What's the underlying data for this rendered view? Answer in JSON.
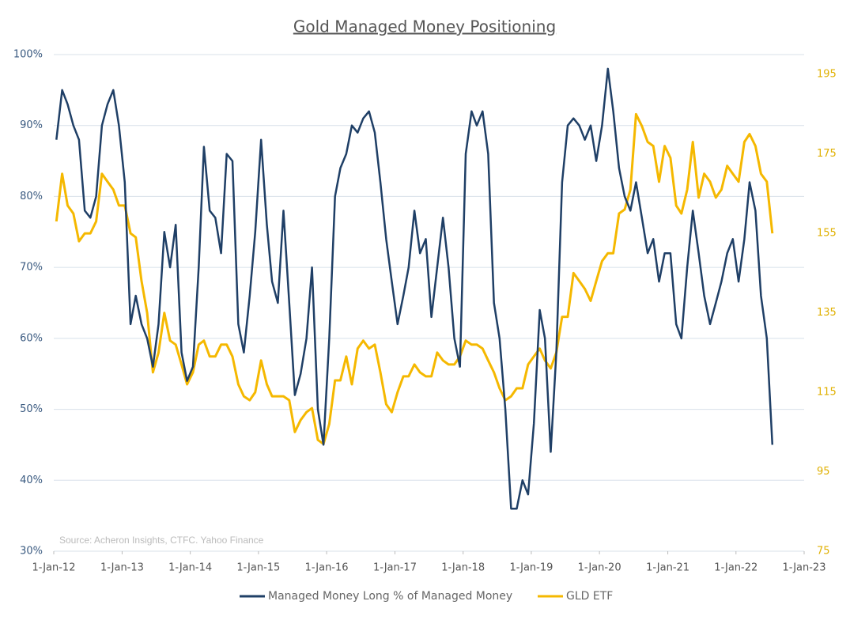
{
  "chart_data": {
    "type": "line",
    "title": "Gold Managed Money Positioning",
    "annotation": "Source: Acheron Insights, CTFC. Yahoo Finance",
    "x": [
      "2012-01-15",
      "2012-02-15",
      "2012-03-15",
      "2012-04-15",
      "2012-05-15",
      "2012-06-15",
      "2012-07-15",
      "2012-08-15",
      "2012-09-15",
      "2012-10-15",
      "2012-11-15",
      "2012-12-15",
      "2013-01-15",
      "2013-02-15",
      "2013-03-15",
      "2013-04-15",
      "2013-05-15",
      "2013-06-15",
      "2013-07-15",
      "2013-08-15",
      "2013-09-15",
      "2013-10-15",
      "2013-11-15",
      "2013-12-15",
      "2014-01-15",
      "2014-02-15",
      "2014-03-15",
      "2014-04-15",
      "2014-05-15",
      "2014-06-15",
      "2014-07-15",
      "2014-08-15",
      "2014-09-15",
      "2014-10-15",
      "2014-11-15",
      "2014-12-15",
      "2015-01-15",
      "2015-02-15",
      "2015-03-15",
      "2015-04-15",
      "2015-05-15",
      "2015-06-15",
      "2015-07-15",
      "2015-08-15",
      "2015-09-15",
      "2015-10-15",
      "2015-11-15",
      "2015-12-15",
      "2016-01-15",
      "2016-02-15",
      "2016-03-15",
      "2016-04-15",
      "2016-05-15",
      "2016-06-15",
      "2016-07-15",
      "2016-08-15",
      "2016-09-15",
      "2016-10-15",
      "2016-11-15",
      "2016-12-15",
      "2017-01-15",
      "2017-02-15",
      "2017-03-15",
      "2017-04-15",
      "2017-05-15",
      "2017-06-15",
      "2017-07-15",
      "2017-08-15",
      "2017-09-15",
      "2017-10-15",
      "2017-11-15",
      "2017-12-15",
      "2018-01-15",
      "2018-02-15",
      "2018-03-15",
      "2018-04-15",
      "2018-05-15",
      "2018-06-15",
      "2018-07-15",
      "2018-08-15",
      "2018-09-15",
      "2018-10-15",
      "2018-11-15",
      "2018-12-15",
      "2019-01-15",
      "2019-02-15",
      "2019-03-15",
      "2019-04-15",
      "2019-05-15",
      "2019-06-15",
      "2019-07-15",
      "2019-08-15",
      "2019-09-15",
      "2019-10-15",
      "2019-11-15",
      "2019-12-15",
      "2020-01-15",
      "2020-02-15",
      "2020-03-15",
      "2020-04-15",
      "2020-05-15",
      "2020-06-15",
      "2020-07-15",
      "2020-08-15",
      "2020-09-15",
      "2020-10-15",
      "2020-11-15",
      "2020-12-15",
      "2021-01-15",
      "2021-02-15",
      "2021-03-15",
      "2021-04-15",
      "2021-05-15",
      "2021-06-15",
      "2021-07-15",
      "2021-08-15",
      "2021-09-15",
      "2021-10-15",
      "2021-11-15",
      "2021-12-15",
      "2022-01-15",
      "2022-02-15",
      "2022-03-15",
      "2022-04-15",
      "2022-05-15",
      "2022-06-15",
      "2022-07-15"
    ],
    "series": [
      {
        "name": "Managed Money Long % of Managed Money",
        "color": "#1f3f66",
        "axis": "y",
        "values": [
          88,
          95,
          93,
          90,
          88,
          78,
          77,
          80,
          90,
          93,
          95,
          90,
          82,
          62,
          66,
          62,
          60,
          56,
          62,
          75,
          70,
          76,
          58,
          54,
          56,
          70,
          87,
          78,
          77,
          72,
          86,
          85,
          62,
          58,
          66,
          75,
          88,
          76,
          68,
          65,
          78,
          65,
          52,
          55,
          60,
          70,
          50,
          45,
          60,
          80,
          84,
          86,
          90,
          89,
          91,
          92,
          89,
          82,
          74,
          68,
          62,
          66,
          70,
          78,
          72,
          74,
          63,
          70,
          77,
          70,
          60,
          56,
          86,
          92,
          90,
          92,
          86,
          65,
          60,
          50,
          36,
          36,
          40,
          38,
          48,
          64,
          60,
          44,
          58,
          82,
          90,
          91,
          90,
          88,
          90,
          85,
          90,
          98,
          92,
          84,
          80,
          78,
          82,
          77,
          72,
          74,
          68,
          72,
          72,
          62,
          60,
          70,
          78,
          72,
          66,
          62,
          65,
          68,
          72,
          74,
          68,
          74,
          82,
          78,
          66,
          60,
          45
        ]
      },
      {
        "name": "GLD ETF",
        "color": "#f5b800",
        "axis": "y2",
        "values": [
          158,
          170,
          162,
          160,
          153,
          155,
          155,
          158,
          170,
          168,
          166,
          162,
          162,
          155,
          154,
          143,
          135,
          120,
          125,
          135,
          128,
          127,
          122,
          117,
          120,
          127,
          128,
          124,
          124,
          127,
          127,
          124,
          117,
          114,
          113,
          115,
          123,
          117,
          114,
          114,
          114,
          113,
          105,
          108,
          110,
          111,
          103,
          102,
          107,
          118,
          118,
          124,
          117,
          126,
          128,
          126,
          127,
          120,
          112,
          110,
          115,
          119,
          119,
          122,
          120,
          119,
          119,
          125,
          123,
          122,
          122,
          124,
          128,
          127,
          127,
          126,
          123,
          120,
          116,
          113,
          114,
          116,
          116,
          122,
          124,
          126,
          123,
          121,
          125,
          134,
          134,
          145,
          143,
          141,
          138,
          143,
          148,
          150,
          150,
          160,
          161,
          166,
          185,
          182,
          178,
          177,
          168,
          177,
          174,
          162,
          160,
          166,
          178,
          164,
          170,
          168,
          164,
          166,
          172,
          170,
          168,
          178,
          180,
          177,
          170,
          168,
          155
        ]
      }
    ],
    "xlim": [
      "2012-01-01",
      "2023-01-01"
    ],
    "xticks": [
      {
        "value": "2012-01-01",
        "label": "1-Jan-12"
      },
      {
        "value": "2013-01-01",
        "label": "1-Jan-13"
      },
      {
        "value": "2014-01-01",
        "label": "1-Jan-14"
      },
      {
        "value": "2015-01-01",
        "label": "1-Jan-15"
      },
      {
        "value": "2016-01-01",
        "label": "1-Jan-16"
      },
      {
        "value": "2017-01-01",
        "label": "1-Jan-17"
      },
      {
        "value": "2018-01-01",
        "label": "1-Jan-18"
      },
      {
        "value": "2019-01-01",
        "label": "1-Jan-19"
      },
      {
        "value": "2020-01-01",
        "label": "1-Jan-20"
      },
      {
        "value": "2021-01-01",
        "label": "1-Jan-21"
      },
      {
        "value": "2022-01-01",
        "label": "1-Jan-22"
      },
      {
        "value": "2023-01-01",
        "label": "1-Jan-23"
      }
    ],
    "ylim": [
      30,
      100
    ],
    "yticks": [
      {
        "value": 30,
        "label": "30%"
      },
      {
        "value": 40,
        "label": "40%"
      },
      {
        "value": 50,
        "label": "50%"
      },
      {
        "value": 60,
        "label": "60%"
      },
      {
        "value": 70,
        "label": "70%"
      },
      {
        "value": 80,
        "label": "80%"
      },
      {
        "value": 90,
        "label": "90%"
      },
      {
        "value": 100,
        "label": "100%"
      }
    ],
    "y2lim": [
      75,
      200
    ],
    "y2ticks": [
      75,
      95,
      115,
      135,
      155,
      175,
      195
    ],
    "grid": true,
    "legend": "bottom"
  }
}
